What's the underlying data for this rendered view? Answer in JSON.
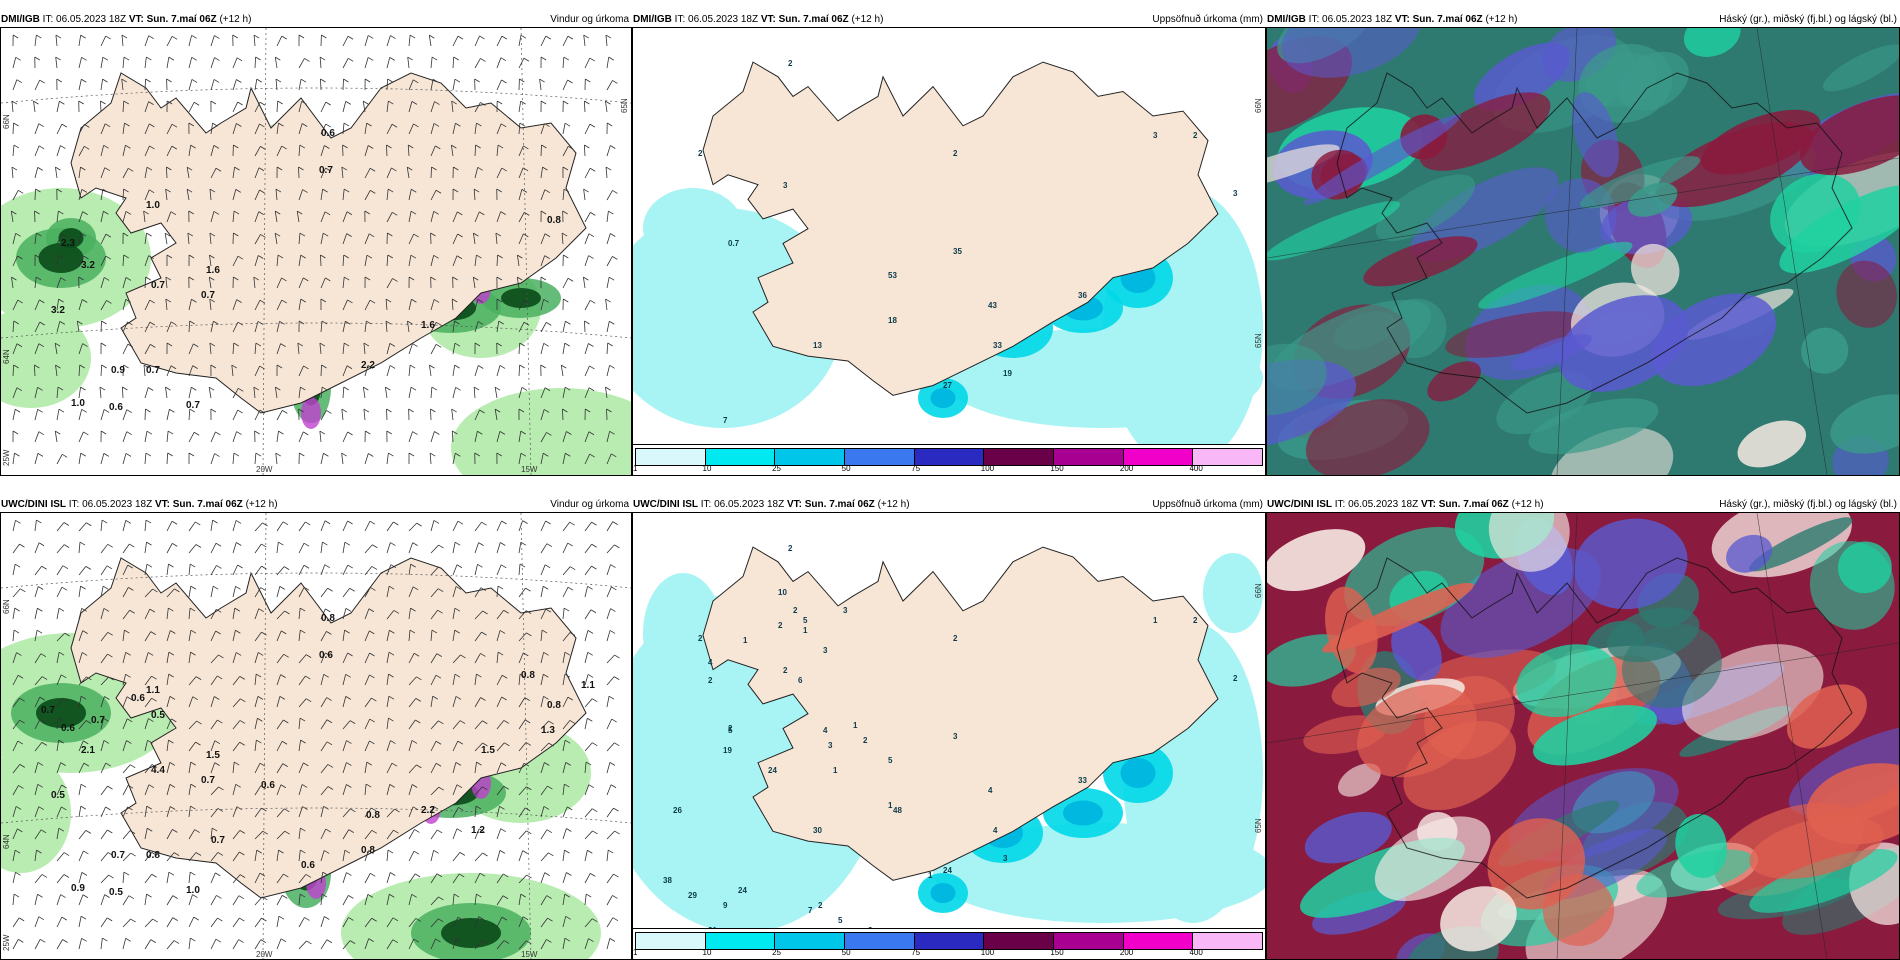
{
  "panels": {
    "top_wind": {
      "model": "DMI/IGB",
      "it_label": "IT:",
      "it_value": "06.05.2023 18Z",
      "vt_label": "VT:",
      "vt_value": "Sun. 7.maí 06Z",
      "lead": "(+12 h)",
      "field": "Vindur og úrkoma",
      "axis": {
        "lat_top": "66N",
        "lat_bottom": "64N",
        "lon_left": "25W",
        "lon_mid": "20W",
        "lon_right": "15W",
        "lat_right": "65N"
      },
      "labels": [
        "0.6",
        "0.7",
        "1.0",
        "0.8",
        "2.3",
        "0.7",
        "3.2",
        "1.6",
        "0.7",
        "3.2",
        "1.6",
        "0.7",
        "0.9",
        "1.0",
        "0.6",
        "0.7",
        "2.2"
      ]
    },
    "top_precip": {
      "model": "DMI/IGB",
      "it_label": "IT:",
      "it_value": "06.05.2023 18Z",
      "vt_label": "VT:",
      "vt_value": "Sun. 7.maí 06Z",
      "lead": "(+12 h)",
      "field": "Uppsöfnuð úrkoma (mm)",
      "axis": {
        "lat_right_top": "66N",
        "lat_right_mid": "65N"
      },
      "labels": [
        "2",
        "2",
        "2",
        "3",
        "2",
        "3",
        "3",
        "0.7",
        "53",
        "35",
        "18",
        "43",
        "33",
        "19",
        "13",
        "27",
        "36",
        "7"
      ]
    },
    "top_cloud": {
      "model": "DMI/IGB",
      "it_label": "IT:",
      "it_value": "06.05.2023 18Z",
      "vt_label": "VT:",
      "vt_value": "Sun. 7.maí 06Z",
      "lead": "(+12 h)",
      "field": "Háský (gr.), miðský (fj.bl.) og lágský (bl.)"
    },
    "bottom_wind": {
      "model": "UWC/DINI ISL",
      "it_label": "IT:",
      "it_value": "06.05.2023 18Z",
      "vt_label": "VT:",
      "vt_value": "Sun. 7.maí 06Z",
      "lead": "(+12 h)",
      "field": "Vindur og úrkoma",
      "axis": {
        "lat_top": "66N",
        "lat_bottom": "64N",
        "lon_left": "25W",
        "lon_mid": "20W",
        "lon_right": "15W"
      },
      "labels": [
        "0.8",
        "0.6",
        "1.1",
        "0.8",
        "0.6",
        "4.4",
        "2.1",
        "1.5",
        "0.7",
        "0.5",
        "2.2",
        "0.8",
        "0.7",
        "0.9",
        "0.5",
        "1.0",
        "0.8",
        "0.6",
        "0.7",
        "0.7",
        "0.5",
        "0.7",
        "0.6",
        "0.8",
        "0.6",
        "1.1",
        "0.8",
        "1.3",
        "1.5",
        "1.2"
      ]
    },
    "bottom_precip": {
      "model": "UWC/DINI ISL",
      "it_label": "IT:",
      "it_value": "06.05.2023 18Z",
      "vt_label": "VT:",
      "vt_value": "Sun. 7.maí 06Z",
      "lead": "(+12 h)",
      "field": "Uppsöfnuð úrkoma (mm)",
      "axis": {
        "lat_right_top": "66N",
        "lat_right_mid": "65N"
      },
      "labels": [
        "2",
        "2",
        "2",
        "1",
        "2",
        "2",
        "2",
        "2",
        "5",
        "3",
        "1",
        "4",
        "4",
        "3",
        "30",
        "24",
        "33",
        "9",
        "10",
        "2",
        "5",
        "2",
        "1",
        "1",
        "4",
        "2",
        "3",
        "5",
        "3",
        "6",
        "4",
        "3",
        "1",
        "2",
        "1",
        "48",
        "24",
        "19",
        "26",
        "38",
        "29",
        "21",
        "24",
        "7",
        "5",
        "2",
        "4",
        "2",
        "2",
        "1"
      ]
    },
    "bottom_cloud": {
      "model": "UWC/DINI ISL",
      "it_label": "IT:",
      "it_value": "06.05.2023 18Z",
      "vt_label": "VT:",
      "vt_value": "Sun. 7.maí 06Z",
      "lead": "(+12 h)",
      "field": "Háský (gr.), miðský (fj.bl.) og lágský (bl.)"
    }
  },
  "colorbar": {
    "ticks": [
      "1",
      "10",
      "25",
      "50",
      "75",
      "100",
      "150",
      "200",
      "400"
    ],
    "colors": [
      "#d8f8fc",
      "#00e8f0",
      "#00c6ea",
      "#3a78f0",
      "#2a2ac0",
      "#6a0048",
      "#a80090",
      "#f000c8",
      "#f8b8f8"
    ]
  },
  "colors": {
    "land": "#f7e6d6",
    "coast": "#222222",
    "wind_green_light": "#b8ecb0",
    "wind_green_mid": "#4ab060",
    "wind_green_dark": "#0a4a1a",
    "precip_cyan": "#a8f4f4",
    "cloud_purple": "#5a5ad0",
    "cloud_teal": "#2e7a70",
    "cloud_crimson": "#8a1a3e",
    "cloud_mint": "#20d0a0"
  }
}
